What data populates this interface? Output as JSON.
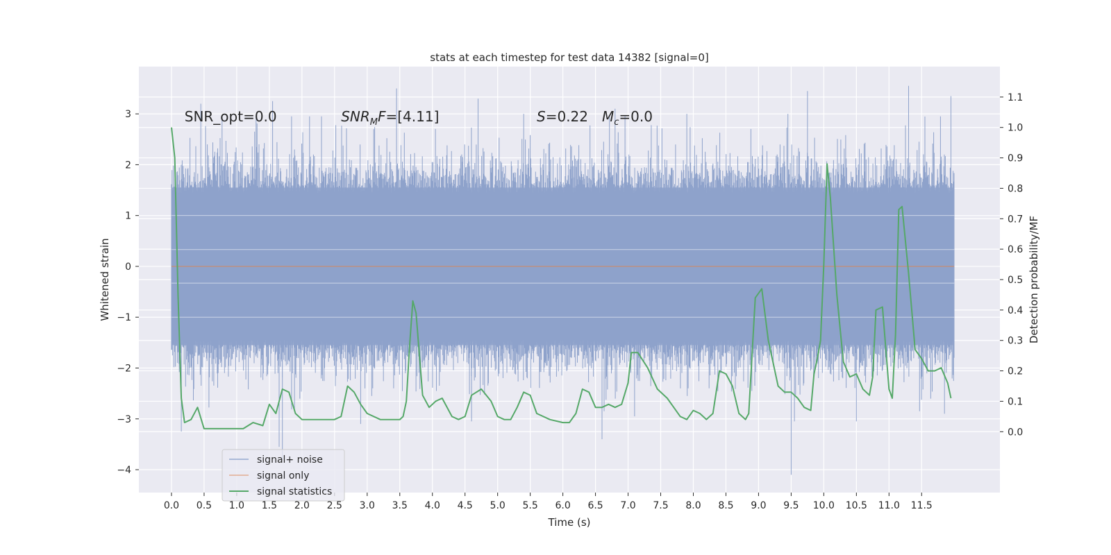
{
  "chart_data": {
    "type": "line",
    "title": "stats at each timestep for test data 14382 [signal=0]",
    "xlabel": "Time (s)",
    "ylabel_left": "Whitened strain",
    "ylabel_right": "Detection probability/MF",
    "xlim": [
      -0.5,
      12.7
    ],
    "ylim_left": [
      -4.45,
      3.93
    ],
    "ylim_right": [
      -0.2,
      1.2
    ],
    "x_ticks": [
      0.0,
      0.5,
      1.0,
      1.5,
      2.0,
      2.5,
      3.0,
      3.5,
      4.0,
      4.5,
      5.0,
      5.5,
      6.0,
      6.5,
      7.0,
      7.5,
      8.0,
      8.5,
      9.0,
      9.5,
      10.0,
      10.5,
      11.0,
      11.5
    ],
    "x_tick_labels": [
      "0.0",
      "0.5",
      "1.0",
      "1.5",
      "2.0",
      "2.5",
      "3.0",
      "3.5",
      "4.0",
      "4.5",
      "5.0",
      "5.5",
      "6.0",
      "6.5",
      "7.0",
      "7.5",
      "8.0",
      "8.5",
      "9.0",
      "9.5",
      "10.0",
      "10.5",
      "11.0",
      "11.5"
    ],
    "y_left_ticks": [
      3,
      2,
      1,
      0,
      -1,
      -2,
      -3,
      -4
    ],
    "y_left_tick_labels": [
      "3",
      "2",
      "1",
      "0",
      "−1",
      "−2",
      "−3",
      "−4"
    ],
    "y_right_ticks": [
      1.1,
      1.0,
      0.9,
      0.8,
      0.7,
      0.6,
      0.5,
      0.4,
      0.3,
      0.2,
      0.1,
      0.0
    ],
    "y_right_tick_labels": [
      "1.1",
      "1.0",
      "0.9",
      "0.8",
      "0.7",
      "0.6",
      "0.5",
      "0.4",
      "0.3",
      "0.2",
      "0.1",
      "0.0"
    ],
    "grid": true,
    "legend_position": "lower-left",
    "annotations": [
      {
        "t": 0.2,
        "s": "SNR_opt=0.0"
      },
      {
        "t": 2.6,
        "s": "SNR_MF=[4.11]",
        "math": "SNR",
        "sub": "M",
        "rest": "F=[4.11]"
      },
      {
        "t": 5.6,
        "s": "S=0.22",
        "math": "S",
        "rest": "=0.22"
      },
      {
        "t": 6.6,
        "s": "M_c=0.0",
        "math": "M",
        "sub": "c",
        "rest": "=0.0"
      }
    ],
    "series": [
      {
        "name": "signal+ noise",
        "color": "#4c72b0",
        "axis": "left",
        "x_range": [
          0.0,
          12.0
        ],
        "band_inner": [
          -1.55,
          1.55
        ],
        "extreme_peaks": [
          {
            "x": 0.45,
            "y": 3.2
          },
          {
            "x": 0.55,
            "y": 2.4
          },
          {
            "x": 1.55,
            "y": 3.25
          },
          {
            "x": 2.3,
            "y": 2.95
          },
          {
            "x": 3.1,
            "y": 2.7
          },
          {
            "x": 3.45,
            "y": 3.5
          },
          {
            "x": 4.7,
            "y": 3.3
          },
          {
            "x": 5.4,
            "y": 3.0
          },
          {
            "x": 6.8,
            "y": 3.1
          },
          {
            "x": 7.9,
            "y": 3.0
          },
          {
            "x": 9.45,
            "y": 3.0
          },
          {
            "x": 9.75,
            "y": 3.45
          },
          {
            "x": 11.3,
            "y": 3.55
          },
          {
            "x": 11.95,
            "y": 3.35
          }
        ],
        "extreme_troughs": [
          {
            "x": 0.15,
            "y": -3.25
          },
          {
            "x": 1.65,
            "y": -3.55
          },
          {
            "x": 1.7,
            "y": -3.8
          },
          {
            "x": 2.9,
            "y": -3.1
          },
          {
            "x": 4.6,
            "y": -3.05
          },
          {
            "x": 6.6,
            "y": -3.4
          },
          {
            "x": 7.1,
            "y": -2.95
          },
          {
            "x": 9.5,
            "y": -4.1
          },
          {
            "x": 9.55,
            "y": -3.05
          },
          {
            "x": 10.5,
            "y": -3.05
          },
          {
            "x": 11.85,
            "y": -2.9
          }
        ]
      },
      {
        "name": "signal only",
        "color": "#dd8452",
        "axis": "left",
        "x": [
          0.0,
          12.0
        ],
        "y": [
          0.0,
          0.0
        ]
      },
      {
        "name": "signal statistics",
        "color": "#55a868",
        "axis": "right",
        "x": [
          0.0,
          0.05,
          0.1,
          0.15,
          0.2,
          0.3,
          0.4,
          0.5,
          0.6,
          0.75,
          0.9,
          1.0,
          1.1,
          1.25,
          1.4,
          1.5,
          1.6,
          1.7,
          1.8,
          1.9,
          2.0,
          2.1,
          2.3,
          2.5,
          2.6,
          2.7,
          2.8,
          2.9,
          3.0,
          3.2,
          3.4,
          3.5,
          3.55,
          3.6,
          3.65,
          3.7,
          3.75,
          3.85,
          3.95,
          4.05,
          4.15,
          4.3,
          4.4,
          4.5,
          4.6,
          4.75,
          4.9,
          5.0,
          5.1,
          5.2,
          5.3,
          5.4,
          5.5,
          5.6,
          5.8,
          6.0,
          6.1,
          6.2,
          6.3,
          6.4,
          6.5,
          6.6,
          6.7,
          6.8,
          6.9,
          7.0,
          7.05,
          7.15,
          7.3,
          7.45,
          7.6,
          7.7,
          7.8,
          7.9,
          8.0,
          8.1,
          8.2,
          8.3,
          8.4,
          8.5,
          8.6,
          8.7,
          8.8,
          8.85,
          8.95,
          9.05,
          9.15,
          9.3,
          9.4,
          9.5,
          9.6,
          9.7,
          9.8,
          9.85,
          9.9,
          9.95,
          10.0,
          10.05,
          10.1,
          10.2,
          10.3,
          10.4,
          10.5,
          10.6,
          10.7,
          10.75,
          10.8,
          10.9,
          11.0,
          11.05,
          11.1,
          11.15,
          11.2,
          11.3,
          11.4,
          11.5,
          11.6,
          11.7,
          11.8,
          11.9,
          11.95
        ],
        "y": [
          1.0,
          0.9,
          0.45,
          0.11,
          0.03,
          0.04,
          0.08,
          0.01,
          0.01,
          0.01,
          0.01,
          0.01,
          0.01,
          0.03,
          0.02,
          0.09,
          0.06,
          0.14,
          0.13,
          0.06,
          0.04,
          0.04,
          0.04,
          0.04,
          0.05,
          0.15,
          0.13,
          0.09,
          0.06,
          0.04,
          0.04,
          0.04,
          0.05,
          0.1,
          0.28,
          0.43,
          0.39,
          0.12,
          0.08,
          0.1,
          0.11,
          0.05,
          0.04,
          0.05,
          0.12,
          0.14,
          0.1,
          0.05,
          0.04,
          0.04,
          0.08,
          0.13,
          0.12,
          0.06,
          0.04,
          0.03,
          0.03,
          0.06,
          0.14,
          0.13,
          0.08,
          0.08,
          0.09,
          0.08,
          0.09,
          0.16,
          0.26,
          0.26,
          0.21,
          0.14,
          0.11,
          0.08,
          0.05,
          0.04,
          0.07,
          0.06,
          0.04,
          0.06,
          0.2,
          0.19,
          0.15,
          0.06,
          0.04,
          0.06,
          0.44,
          0.47,
          0.3,
          0.15,
          0.13,
          0.13,
          0.11,
          0.08,
          0.07,
          0.19,
          0.24,
          0.3,
          0.55,
          0.88,
          0.77,
          0.45,
          0.23,
          0.18,
          0.19,
          0.14,
          0.12,
          0.18,
          0.4,
          0.41,
          0.14,
          0.11,
          0.32,
          0.73,
          0.74,
          0.52,
          0.27,
          0.24,
          0.2,
          0.2,
          0.21,
          0.16,
          0.11
        ]
      }
    ]
  }
}
